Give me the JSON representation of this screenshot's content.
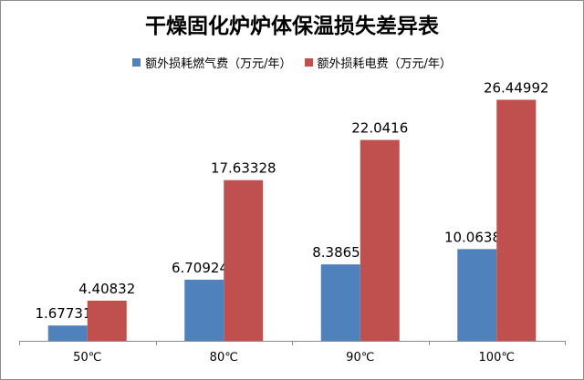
{
  "chart_data": {
    "type": "bar",
    "title": "干燥固化炉炉体保温损失差异表",
    "categories": [
      "50℃",
      "80℃",
      "90℃",
      "100℃"
    ],
    "series": [
      {
        "name": "额外损耗燃气费（万元/年）",
        "color": "#4f81bd",
        "values": [
          1.677312,
          6.709248,
          8.38656,
          10.06387
        ],
        "labels": [
          "1.677312",
          "6.709248",
          "8.38656",
          "10.06387"
        ]
      },
      {
        "name": "额外损耗电费（万元/年）",
        "color": "#c0504d",
        "values": [
          4.40832,
          17.63328,
          22.0416,
          26.44992
        ],
        "labels": [
          "4.40832",
          "17.63328",
          "22.0416",
          "26.44992"
        ]
      }
    ],
    "ylim": [
      0,
      30
    ],
    "legend_position": "top",
    "grid": false,
    "xlabel": "",
    "ylabel": ""
  }
}
